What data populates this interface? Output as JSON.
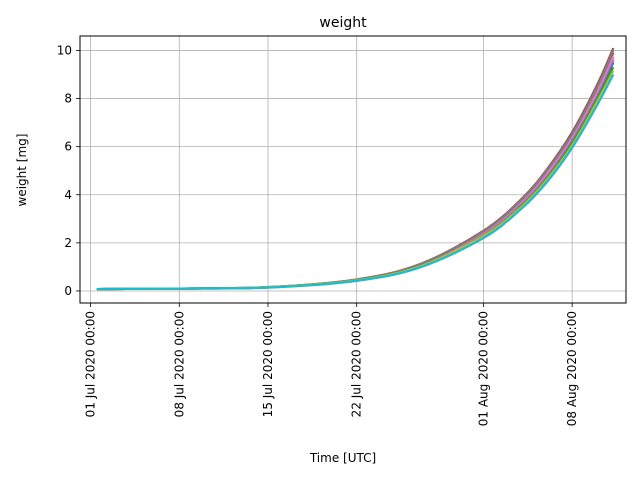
{
  "chart_data": {
    "type": "line",
    "title": "weight",
    "xlabel": "Time  [UTC]",
    "ylabel": "weight  [mg]",
    "x_axis": "datetime",
    "xlim": [
      "2020-06-30T04:00",
      "2020-08-12T06:00"
    ],
    "ylim": [
      -0.5,
      10.6
    ],
    "xticks": [
      {
        "date": "2020-07-01T00:00",
        "label": "01 Jul 2020 00:00"
      },
      {
        "date": "2020-07-08T00:00",
        "label": "08 Jul 2020 00:00"
      },
      {
        "date": "2020-07-15T00:00",
        "label": "15 Jul 2020 00:00"
      },
      {
        "date": "2020-07-22T00:00",
        "label": "22 Jul 2020 00:00"
      },
      {
        "date": "2020-08-01T00:00",
        "label": "01 Aug 2020 00:00"
      },
      {
        "date": "2020-08-08T00:00",
        "label": "08 Aug 2020 00:00"
      }
    ],
    "yticks": [
      {
        "value": 0,
        "label": "0"
      },
      {
        "value": 2,
        "label": "2"
      },
      {
        "value": 4,
        "label": "4"
      },
      {
        "value": 6,
        "label": "6"
      },
      {
        "value": 8,
        "label": "8"
      },
      {
        "value": 10,
        "label": "10"
      }
    ],
    "grid": true,
    "legend": "none",
    "series": [
      {
        "color": "#1f77b4",
        "x": [
          "2020-07-01T12:00",
          "2020-07-08T00:00",
          "2020-07-15T00:00",
          "2020-07-22T00:00",
          "2020-07-27T00:00",
          "2020-08-01T00:00",
          "2020-08-04T00:00",
          "2020-08-06T00:00",
          "2020-08-08T00:00",
          "2020-08-10T00:00",
          "2020-08-11T06:00"
        ],
        "y": [
          0.08,
          0.1,
          0.15,
          0.45,
          1.05,
          2.35,
          3.6,
          4.75,
          6.25,
          8.1,
          9.5
        ]
      },
      {
        "color": "#ff7f0e",
        "x": [
          "2020-07-01T12:00",
          "2020-07-08T00:00",
          "2020-07-15T00:00",
          "2020-07-22T00:00",
          "2020-07-27T00:00",
          "2020-08-01T00:00",
          "2020-08-04T00:00",
          "2020-08-06T00:00",
          "2020-08-08T00:00",
          "2020-08-10T00:00",
          "2020-08-11T06:00"
        ],
        "y": [
          0.08,
          0.1,
          0.15,
          0.46,
          1.07,
          2.4,
          3.68,
          4.85,
          6.35,
          8.25,
          9.7
        ]
      },
      {
        "color": "#2ca02c",
        "x": [
          "2020-07-01T12:00",
          "2020-07-08T00:00",
          "2020-07-15T00:00",
          "2020-07-22T00:00",
          "2020-07-27T00:00",
          "2020-08-01T00:00",
          "2020-08-04T00:00",
          "2020-08-06T00:00",
          "2020-08-08T00:00",
          "2020-08-10T00:00",
          "2020-08-11T06:00"
        ],
        "y": [
          0.08,
          0.1,
          0.15,
          0.44,
          1.03,
          2.3,
          3.55,
          4.7,
          6.15,
          8.0,
          9.3
        ]
      },
      {
        "color": "#d62728",
        "x": [
          "2020-07-01T12:00",
          "2020-07-08T00:00",
          "2020-07-15T00:00",
          "2020-07-22T00:00",
          "2020-07-27T00:00",
          "2020-08-01T00:00",
          "2020-08-04T00:00",
          "2020-08-06T00:00",
          "2020-08-08T00:00",
          "2020-08-10T00:00",
          "2020-08-11T06:00"
        ],
        "y": [
          0.08,
          0.1,
          0.15,
          0.47,
          1.1,
          2.45,
          3.75,
          4.95,
          6.45,
          8.4,
          9.9
        ]
      },
      {
        "color": "#9467bd",
        "x": [
          "2020-07-01T12:00",
          "2020-07-08T00:00",
          "2020-07-15T00:00",
          "2020-07-22T00:00",
          "2020-07-27T00:00",
          "2020-08-01T00:00",
          "2020-08-04T00:00",
          "2020-08-06T00:00",
          "2020-08-08T00:00",
          "2020-08-10T00:00",
          "2020-08-11T06:00"
        ],
        "y": [
          0.08,
          0.1,
          0.15,
          0.45,
          1.06,
          2.38,
          3.65,
          4.8,
          6.3,
          8.2,
          9.6
        ]
      },
      {
        "color": "#8c564b",
        "x": [
          "2020-07-01T12:00",
          "2020-07-08T00:00",
          "2020-07-15T00:00",
          "2020-07-22T00:00",
          "2020-07-27T00:00",
          "2020-08-01T00:00",
          "2020-08-04T00:00",
          "2020-08-06T00:00",
          "2020-08-08T00:00",
          "2020-08-10T00:00",
          "2020-08-11T06:00"
        ],
        "y": [
          0.08,
          0.1,
          0.16,
          0.48,
          1.12,
          2.5,
          3.82,
          5.05,
          6.6,
          8.6,
          10.1
        ]
      },
      {
        "color": "#e377c2",
        "x": [
          "2020-07-01T12:00",
          "2020-07-08T00:00",
          "2020-07-15T00:00",
          "2020-07-22T00:00",
          "2020-07-27T00:00",
          "2020-08-01T00:00",
          "2020-08-04T00:00",
          "2020-08-06T00:00",
          "2020-08-08T00:00",
          "2020-08-10T00:00",
          "2020-08-11T06:00"
        ],
        "y": [
          0.08,
          0.1,
          0.15,
          0.46,
          1.08,
          2.42,
          3.7,
          4.88,
          6.4,
          8.3,
          9.75
        ]
      },
      {
        "color": "#7f7f7f",
        "x": [
          "2020-07-01T12:00",
          "2020-07-08T00:00",
          "2020-07-15T00:00",
          "2020-07-22T00:00",
          "2020-07-27T00:00",
          "2020-08-01T00:00",
          "2020-08-04T00:00",
          "2020-08-06T00:00",
          "2020-08-08T00:00",
          "2020-08-10T00:00",
          "2020-08-11T06:00"
        ],
        "y": [
          0.08,
          0.1,
          0.16,
          0.47,
          1.11,
          2.47,
          3.78,
          5.0,
          6.52,
          8.5,
          10.0
        ]
      },
      {
        "color": "#bcbd22",
        "x": [
          "2020-07-01T12:00",
          "2020-07-08T00:00",
          "2020-07-15T00:00",
          "2020-07-22T00:00",
          "2020-07-27T00:00",
          "2020-08-01T00:00",
          "2020-08-04T00:00",
          "2020-08-06T00:00",
          "2020-08-08T00:00",
          "2020-08-10T00:00",
          "2020-08-11T06:00"
        ],
        "y": [
          0.08,
          0.1,
          0.15,
          0.44,
          1.02,
          2.28,
          3.5,
          4.62,
          6.05,
          7.9,
          9.15
        ]
      },
      {
        "color": "#17becf",
        "x": [
          "2020-07-01T12:00",
          "2020-07-08T00:00",
          "2020-07-15T00:00",
          "2020-07-22T00:00",
          "2020-07-27T00:00",
          "2020-08-01T00:00",
          "2020-08-04T00:00",
          "2020-08-06T00:00",
          "2020-08-08T00:00",
          "2020-08-10T00:00",
          "2020-08-11T06:00"
        ],
        "y": [
          0.08,
          0.1,
          0.14,
          0.42,
          0.98,
          2.2,
          3.42,
          4.52,
          5.95,
          7.75,
          9.0
        ]
      }
    ]
  }
}
